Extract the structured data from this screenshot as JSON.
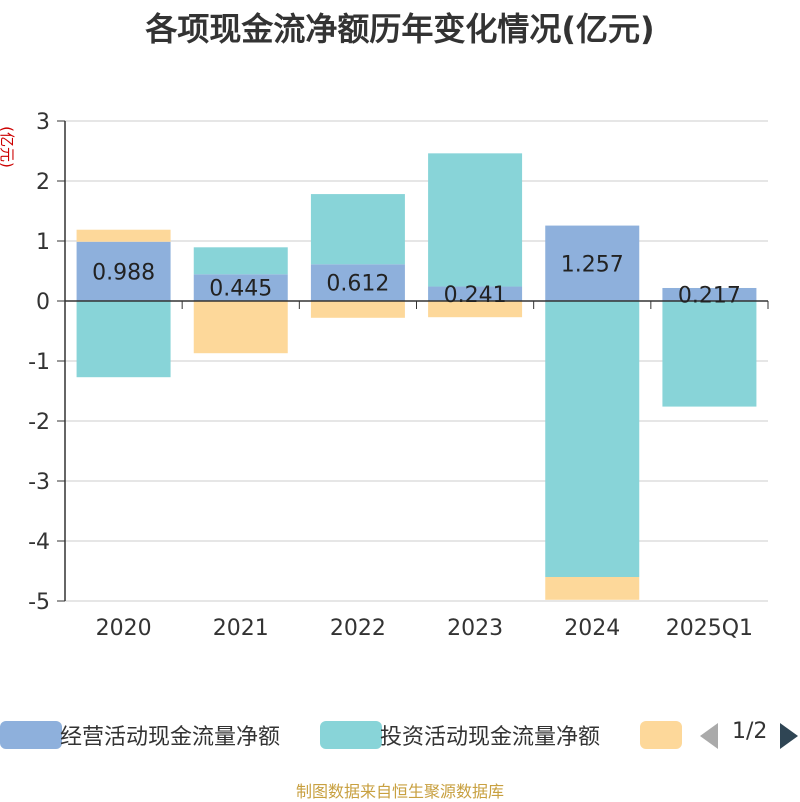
{
  "chart_data": {
    "type": "bar",
    "stacked": true,
    "title": "各项现金流净额历年变化情况(亿元)",
    "ylabel": "(亿元)",
    "ylim": [
      -5,
      3
    ],
    "yticks": [
      3,
      2,
      1,
      0,
      -1,
      -2,
      -3,
      -4,
      -5
    ],
    "categories": [
      "2020",
      "2021",
      "2022",
      "2023",
      "2024",
      "2025Q1"
    ],
    "grid": true,
    "legend_position": "bottom",
    "series": [
      {
        "name": "经营活动现金流量净额",
        "color": "#8eb0dc",
        "values": [
          0.988,
          0.445,
          0.612,
          0.241,
          1.257,
          0.217
        ]
      },
      {
        "name": "投资活动现金流量净额",
        "color": "#88d4d8",
        "values": [
          -1.27,
          0.45,
          1.17,
          2.22,
          -4.6,
          -1.76
        ]
      },
      {
        "name": "",
        "color": "#fdd89a",
        "values": [
          0.2,
          -0.87,
          -0.28,
          -0.27,
          -0.38,
          0
        ]
      }
    ],
    "data_labels": [
      "0.988",
      "0.445",
      "0.612",
      "0.241",
      "1.257",
      "0.217"
    ]
  },
  "legend": {
    "page_indicator": "1/2"
  },
  "source": "制图数据来自恒生聚源数据库"
}
